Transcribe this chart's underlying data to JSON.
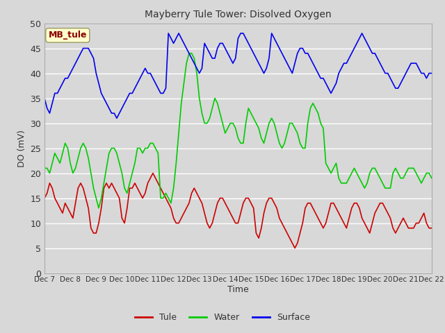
{
  "title": "Mayberry Tule Tower: Disolved Oxygen",
  "ylabel": "DO (mV)",
  "xlabel": "Time",
  "xlim": [
    0,
    15
  ],
  "ylim": [
    0,
    50
  ],
  "yticks": [
    0,
    5,
    10,
    15,
    20,
    25,
    30,
    35,
    40,
    45,
    50
  ],
  "xtick_labels": [
    "Dec 7",
    "Dec 8",
    "Dec 9",
    "Dec 10",
    "Dec 11",
    "Dec 12",
    "Dec 13",
    "Dec 14",
    "Dec 15",
    "Dec 16",
    "Dec 17",
    "Dec 18",
    "Dec 19",
    "Dec 20",
    "Dec 21",
    "Dec 22"
  ],
  "background_color": "#d8d8d8",
  "plot_bg_color": "#d8d8d8",
  "grid_color": "#ffffff",
  "legend_label": "MB_tule",
  "legend_bg": "#ffffcc",
  "legend_text_color": "#8b0000",
  "line_colors": {
    "tule": "#cc0000",
    "water": "#00cc00",
    "surface": "#0000ee"
  },
  "line_width": 1.2,
  "tule_y": [
    15,
    16,
    18,
    17,
    15,
    14,
    13,
    12,
    14,
    13,
    12,
    11,
    14,
    17,
    18,
    17,
    15,
    13,
    9,
    8,
    8,
    10,
    13,
    17,
    18,
    17,
    18,
    17,
    16,
    15,
    11,
    10,
    13,
    17,
    17,
    18,
    17,
    16,
    15,
    16,
    18,
    19,
    20,
    19,
    18,
    17,
    16,
    15,
    14,
    13,
    11,
    10,
    10,
    11,
    12,
    13,
    14,
    16,
    17,
    16,
    15,
    14,
    12,
    10,
    9,
    10,
    12,
    14,
    15,
    15,
    14,
    13,
    12,
    11,
    10,
    10,
    12,
    14,
    15,
    15,
    14,
    13,
    8,
    7,
    9,
    12,
    14,
    15,
    15,
    14,
    13,
    11,
    10,
    9,
    8,
    7,
    6,
    5,
    6,
    8,
    10,
    13,
    14,
    14,
    13,
    12,
    11,
    10,
    9,
    10,
    12,
    14,
    14,
    13,
    12,
    11,
    10,
    9,
    11,
    13,
    14,
    14,
    13,
    11,
    10,
    9,
    8,
    10,
    12,
    13,
    14,
    14,
    13,
    12,
    11,
    9,
    8,
    9,
    10,
    11,
    10,
    9,
    9,
    9,
    10,
    10,
    11,
    12,
    10,
    9,
    9
  ],
  "water_y": [
    21,
    21,
    20,
    22,
    24,
    23,
    22,
    24,
    26,
    25,
    22,
    20,
    21,
    23,
    25,
    26,
    25,
    23,
    20,
    17,
    15,
    13,
    15,
    18,
    21,
    24,
    25,
    25,
    24,
    22,
    20,
    17,
    16,
    18,
    20,
    22,
    25,
    25,
    24,
    25,
    25,
    26,
    26,
    25,
    24,
    15,
    15,
    16,
    15,
    14,
    17,
    22,
    28,
    34,
    38,
    42,
    44,
    44,
    43,
    40,
    35,
    32,
    30,
    30,
    31,
    33,
    35,
    34,
    32,
    30,
    28,
    29,
    30,
    30,
    29,
    27,
    26,
    26,
    30,
    33,
    32,
    31,
    30,
    29,
    27,
    26,
    28,
    30,
    31,
    30,
    28,
    26,
    25,
    26,
    28,
    30,
    30,
    29,
    28,
    26,
    25,
    25,
    30,
    33,
    34,
    33,
    32,
    30,
    29,
    22,
    21,
    20,
    21,
    22,
    19,
    18,
    18,
    18,
    19,
    20,
    21,
    20,
    19,
    18,
    17,
    18,
    20,
    21,
    21,
    20,
    19,
    18,
    17,
    17,
    17,
    20,
    21,
    20,
    19,
    19,
    20,
    21,
    21,
    21,
    20,
    19,
    18,
    19,
    20,
    20,
    19
  ],
  "surface_y": [
    35,
    33,
    32,
    34,
    36,
    36,
    37,
    38,
    39,
    39,
    40,
    41,
    42,
    43,
    44,
    45,
    45,
    45,
    44,
    43,
    40,
    38,
    36,
    35,
    34,
    33,
    32,
    32,
    31,
    32,
    33,
    34,
    35,
    36,
    36,
    37,
    38,
    39,
    40,
    41,
    40,
    40,
    39,
    38,
    37,
    36,
    36,
    37,
    48,
    47,
    46,
    47,
    48,
    47,
    46,
    45,
    44,
    43,
    42,
    41,
    40,
    41,
    46,
    45,
    44,
    43,
    43,
    45,
    46,
    46,
    45,
    44,
    43,
    42,
    43,
    47,
    48,
    48,
    47,
    46,
    45,
    44,
    43,
    42,
    41,
    40,
    41,
    43,
    48,
    47,
    46,
    45,
    44,
    43,
    42,
    41,
    40,
    42,
    44,
    45,
    45,
    44,
    44,
    43,
    42,
    41,
    40,
    39,
    39,
    38,
    37,
    36,
    37,
    38,
    40,
    41,
    42,
    42,
    43,
    44,
    45,
    46,
    47,
    48,
    47,
    46,
    45,
    44,
    44,
    43,
    42,
    41,
    40,
    40,
    39,
    38,
    37,
    37,
    38,
    39,
    40,
    41,
    42,
    42,
    42,
    41,
    40,
    40,
    39,
    40,
    40
  ]
}
